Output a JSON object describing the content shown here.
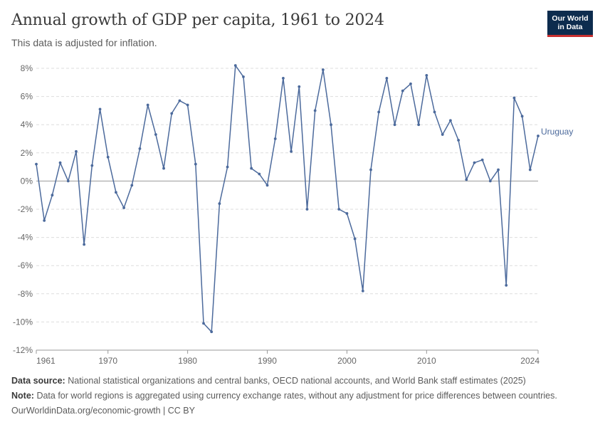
{
  "header": {
    "title": "Annual growth of GDP per capita, 1961 to 2024",
    "subtitle": "This data is adjusted for inflation."
  },
  "logo": {
    "line1": "Our World",
    "line2": "in Data"
  },
  "footer": {
    "source_label": "Data source:",
    "source_text": "National statistical organizations and central banks, OECD national accounts, and World Bank staff estimates (2025)",
    "note_label": "Note:",
    "note_text": "Data for world regions is aggregated using currency exchange rates, without any adjustment for price differences between countries.",
    "link_text": "OurWorldinData.org/economic-growth | CC BY"
  },
  "colors": {
    "series": "#4c6a9c",
    "grid": "#dddddd",
    "zero": "#999999",
    "logo_bg": "#0d2c4e",
    "logo_accent": "#c83030"
  },
  "chart_data": {
    "type": "line",
    "title": "Annual growth of GDP per capita, 1961 to 2024",
    "subtitle": "This data is adjusted for inflation.",
    "xlim": [
      1961,
      2024
    ],
    "ylim": [
      -12,
      8
    ],
    "x_ticks": [
      1961,
      1970,
      1980,
      1990,
      2000,
      2010,
      2024
    ],
    "y_ticks": [
      -12,
      -10,
      -8,
      -6,
      -4,
      -2,
      0,
      2,
      4,
      6,
      8
    ],
    "y_tick_labels": [
      "-12%",
      "-10%",
      "-8%",
      "-6%",
      "-4%",
      "-2%",
      "0%",
      "2%",
      "4%",
      "6%",
      "8%"
    ],
    "grid": "horizontal dashed",
    "legend": "inline label at end of line",
    "series": [
      {
        "name": "Uruguay",
        "x": [
          1961,
          1962,
          1963,
          1964,
          1965,
          1966,
          1967,
          1968,
          1969,
          1970,
          1971,
          1972,
          1973,
          1974,
          1975,
          1976,
          1977,
          1978,
          1979,
          1980,
          1981,
          1982,
          1983,
          1984,
          1985,
          1986,
          1987,
          1988,
          1989,
          1990,
          1991,
          1992,
          1993,
          1994,
          1995,
          1996,
          1997,
          1998,
          1999,
          2000,
          2001,
          2002,
          2003,
          2004,
          2005,
          2006,
          2007,
          2008,
          2009,
          2010,
          2011,
          2012,
          2013,
          2014,
          2015,
          2016,
          2017,
          2018,
          2019,
          2020,
          2021,
          2022,
          2023,
          2024
        ],
        "values": [
          1.2,
          -2.8,
          -1.0,
          1.3,
          0.0,
          2.1,
          -4.5,
          1.1,
          5.1,
          1.7,
          -0.8,
          -1.9,
          -0.3,
          2.3,
          5.4,
          3.3,
          0.9,
          4.8,
          5.7,
          5.4,
          1.2,
          -10.1,
          -10.7,
          -1.6,
          1.0,
          8.2,
          7.4,
          0.9,
          0.5,
          -0.3,
          3.0,
          7.3,
          2.1,
          6.7,
          -2.0,
          5.0,
          7.9,
          4.0,
          -2.0,
          -2.3,
          -4.1,
          -7.8,
          0.8,
          4.9,
          7.3,
          4.0,
          6.4,
          6.9,
          4.0,
          7.5,
          4.9,
          3.3,
          4.3,
          2.9,
          0.1,
          1.3,
          1.5,
          0.0,
          0.8,
          -7.4,
          5.9,
          4.6,
          0.8,
          3.2
        ]
      }
    ]
  }
}
